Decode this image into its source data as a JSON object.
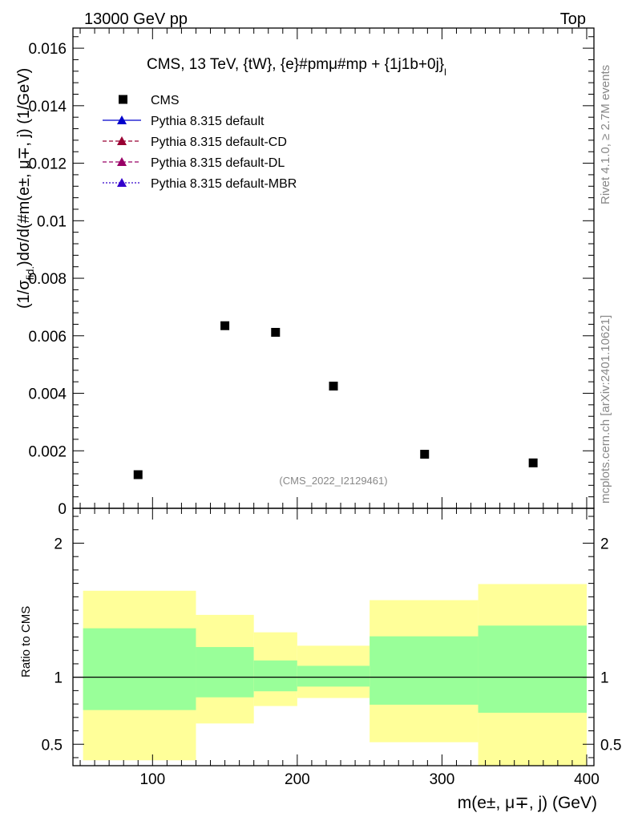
{
  "header": {
    "left": "13000 GeV pp",
    "right": "Top"
  },
  "side": {
    "rivet": "Rivet 4.1.0, ≥ 2.7M events",
    "mcplots": "mcplots.cern.ch [arXiv:2401.10621]"
  },
  "chart_data": [
    {
      "type": "scatter",
      "panel": "main",
      "title": "CMS, 13 TeV, {tW}, {e}#pmμ#mp + {1j1b+0j}",
      "title_subscript": "l",
      "ylabel_prefix": "(1/σ",
      "ylabel_sub": "fid.",
      "ylabel_main": ")dσ/d(#m(e±, μ∓, j) (1/GeV)",
      "xlim": [
        45,
        405
      ],
      "ylim": [
        0,
        0.0167
      ],
      "yticks": [
        0,
        0.002,
        0.004,
        0.006,
        0.008,
        0.01,
        0.012,
        0.014,
        0.016
      ],
      "ytick_labels": [
        "0",
        "0.002",
        "0.004",
        "0.006",
        "0.008",
        "0.01",
        "0.012",
        "0.014",
        "0.016"
      ],
      "series": [
        {
          "name": "CMS",
          "marker": "square",
          "color": "#000000",
          "x": [
            90,
            150,
            185,
            225,
            288,
            363
          ],
          "y": [
            0.00117,
            0.00635,
            0.00612,
            0.00425,
            0.00188,
            0.00158
          ]
        }
      ],
      "legend": [
        {
          "label": "CMS",
          "style": "square",
          "color": "#000000"
        },
        {
          "label": "Pythia 8.315 default",
          "style": "solid",
          "color": "#0000cc"
        },
        {
          "label": "Pythia 8.315 default-CD",
          "style": "dashed",
          "color": "#990033"
        },
        {
          "label": "Pythia 8.315 default-DL",
          "style": "dashed",
          "color": "#990066"
        },
        {
          "label": "Pythia 8.315 default-MBR",
          "style": "dotted",
          "color": "#3300cc"
        }
      ],
      "watermark": "(CMS_2022_I2129461)"
    },
    {
      "type": "area",
      "panel": "ratio",
      "ylabel": "Ratio to CMS",
      "xlabel": "m(e±, μ∓, j) (GeV)",
      "xlim": [
        45,
        405
      ],
      "ylim": [
        0.34,
        2.26
      ],
      "xticks": [
        100,
        200,
        300,
        400
      ],
      "xtick_labels": [
        "100",
        "200",
        "300",
        "400"
      ],
      "yticks": [
        0.5,
        1,
        2
      ],
      "ytick_labels": [
        "0.5",
        "1",
        "2"
      ],
      "reference": 1.0,
      "bins": [
        {
          "lo": 52,
          "hi": 130,
          "stat_lo": 0.755,
          "stat_hi": 1.365,
          "tot_lo": 0.38,
          "tot_hi": 1.645
        },
        {
          "lo": 130,
          "hi": 170,
          "stat_lo": 0.85,
          "stat_hi": 1.225,
          "tot_lo": 0.655,
          "tot_hi": 1.465
        },
        {
          "lo": 170,
          "hi": 200,
          "stat_lo": 0.895,
          "stat_hi": 1.125,
          "tot_lo": 0.785,
          "tot_hi": 1.335
        },
        {
          "lo": 200,
          "hi": 250,
          "stat_lo": 0.93,
          "stat_hi": 1.085,
          "tot_lo": 0.845,
          "tot_hi": 1.235
        },
        {
          "lo": 250,
          "hi": 325,
          "stat_lo": 0.795,
          "stat_hi": 1.305,
          "tot_lo": 0.515,
          "tot_hi": 1.575
        },
        {
          "lo": 325,
          "hi": 400,
          "stat_lo": 0.735,
          "stat_hi": 1.385,
          "tot_lo": 0.34,
          "tot_hi": 1.695
        }
      ],
      "colors": {
        "stat": "#99ff99",
        "total": "#ffff99"
      }
    }
  ]
}
